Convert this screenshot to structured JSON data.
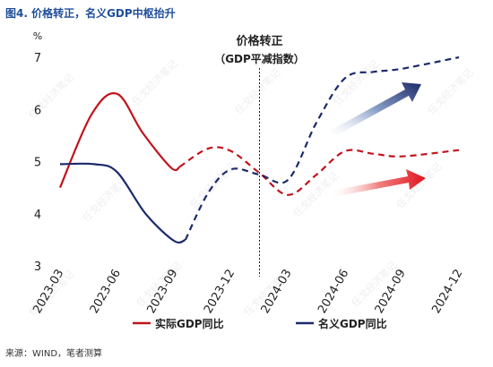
{
  "figure_title": "图4. 价格转正，名义GDP中枢抬升",
  "source": "来源：WIND，笔者测算",
  "watermark": "任戈经济笔记",
  "colors": {
    "real": "#c0141d",
    "nominal": "#1b2a6b",
    "accent_title": "#1f4e9a"
  },
  "chart_data": {
    "type": "line",
    "title": "",
    "xlabel": "",
    "ylabel": "",
    "y_unit_label": "%",
    "ylim": [
      3,
      7
    ],
    "yticks": [
      3,
      4,
      5,
      6,
      7
    ],
    "categories": [
      "2023-03",
      "2023-06",
      "2023-09",
      "2023-12",
      "2024-03",
      "2024-06",
      "2024-09",
      "2024-12"
    ],
    "x_range": [
      0,
      7
    ],
    "grid": false,
    "legend_position": "bottom",
    "divider_annotation": {
      "x": 3.5,
      "line1": "价格转正",
      "line2": "（GDP平减指数）"
    },
    "series": [
      {
        "name": "实际GDP同比",
        "color": "#c0141d",
        "solid": [
          [
            0,
            4.5
          ],
          [
            0.55,
            5.9
          ],
          [
            1.0,
            6.3
          ],
          [
            1.45,
            5.55
          ],
          [
            1.95,
            4.88
          ],
          [
            2.1,
            4.9
          ]
        ],
        "dashed": [
          [
            2.1,
            4.9
          ],
          [
            2.6,
            5.25
          ],
          [
            3.0,
            5.2
          ],
          [
            3.5,
            4.78
          ],
          [
            4.0,
            4.36
          ],
          [
            4.5,
            4.75
          ],
          [
            5.0,
            5.2
          ],
          [
            5.5,
            5.15
          ],
          [
            6.0,
            5.1
          ],
          [
            7.0,
            5.22
          ]
        ]
      },
      {
        "name": "名义GDP同比",
        "color": "#1b2a6b",
        "solid": [
          [
            0,
            4.95
          ],
          [
            0.6,
            4.95
          ],
          [
            1.0,
            4.8
          ],
          [
            1.5,
            4.0
          ],
          [
            2.0,
            3.48
          ],
          [
            2.2,
            3.5
          ]
        ],
        "dashed": [
          [
            2.2,
            3.5
          ],
          [
            2.6,
            4.4
          ],
          [
            3.0,
            4.85
          ],
          [
            3.5,
            4.75
          ],
          [
            4.0,
            4.65
          ],
          [
            4.5,
            5.75
          ],
          [
            5.0,
            6.6
          ],
          [
            5.5,
            6.72
          ],
          [
            6.0,
            6.78
          ],
          [
            7.0,
            7.0
          ]
        ]
      }
    ]
  }
}
